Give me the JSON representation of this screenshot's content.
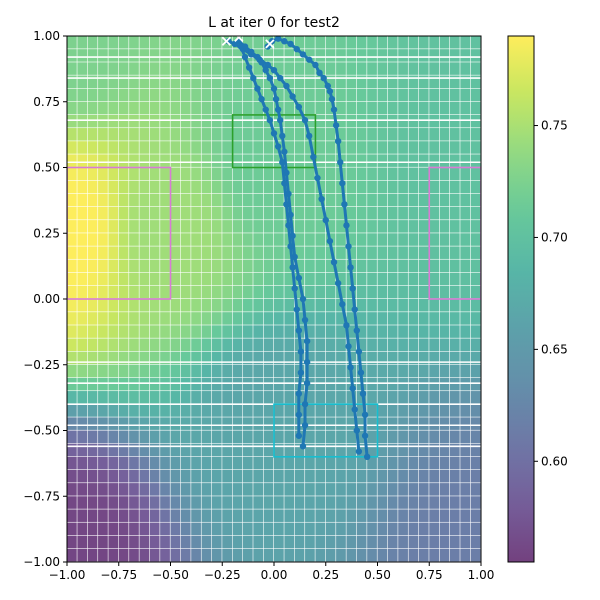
{
  "chart_data": {
    "type": "heatmap",
    "title": "L at iter 0 for test2",
    "xlabel": "",
    "ylabel": "",
    "xlim": [
      -1.0,
      1.0
    ],
    "ylim": [
      -1.0,
      1.0
    ],
    "x_ticks": [
      -1.0,
      -0.75,
      -0.5,
      -0.25,
      0.0,
      0.25,
      0.5,
      0.75,
      1.0
    ],
    "y_ticks": [
      -1.0,
      -0.75,
      -0.5,
      -0.25,
      0.0,
      0.25,
      0.5,
      0.75,
      1.0
    ],
    "x_tick_labels": [
      "−1.00",
      "−0.75",
      "−0.50",
      "−0.25",
      "0.00",
      "0.25",
      "0.50",
      "0.75",
      "1.00"
    ],
    "y_tick_labels": [
      "−1.00",
      "−0.75",
      "−0.50",
      "−0.25",
      "0.00",
      "0.25",
      "0.50",
      "0.75",
      "1.00"
    ],
    "colorbar": {
      "colormap": "viridis",
      "alpha": 0.75,
      "vmin": 0.555,
      "vmax": 0.79,
      "ticks": [
        0.6,
        0.65,
        0.7,
        0.75
      ],
      "tick_labels": [
        "0.60",
        "0.65",
        "0.70",
        "0.75"
      ]
    },
    "heatmap": {
      "grid_size": 40,
      "anchors": [
        {
          "x": -1.0,
          "y": 0.25,
          "value": 0.79
        },
        {
          "x": -1.0,
          "y": 1.0,
          "value": 0.725
        },
        {
          "x": -0.5,
          "y": 0.25,
          "value": 0.745
        },
        {
          "x": 0.0,
          "y": 0.5,
          "value": 0.715
        },
        {
          "x": 1.0,
          "y": 0.5,
          "value": 0.7
        },
        {
          "x": 0.0,
          "y": -0.5,
          "value": 0.665
        },
        {
          "x": -1.0,
          "y": -1.0,
          "value": 0.56
        },
        {
          "x": 1.0,
          "y": -1.0,
          "value": 0.615
        }
      ],
      "white_lines_y": [
        0.92,
        0.84,
        0.68,
        0.52,
        -0.24,
        -0.32,
        -0.4,
        -0.48,
        -0.56
      ]
    },
    "regions": [
      {
        "name": "pink-left",
        "x": [
          -1.0,
          -0.5
        ],
        "y": [
          0.0,
          0.5
        ],
        "color": "#d87bd4"
      },
      {
        "name": "pink-right",
        "x": [
          0.75,
          1.0
        ],
        "y": [
          0.0,
          0.5
        ],
        "color": "#d87bd4"
      },
      {
        "name": "green-goal",
        "x": [
          -0.2,
          0.2
        ],
        "y": [
          0.5,
          0.7
        ],
        "color": "#2ca02c"
      },
      {
        "name": "cyan-start",
        "x": [
          0.0,
          0.5
        ],
        "y": [
          -0.6,
          -0.4
        ],
        "color": "#17becf"
      }
    ],
    "series": [
      {
        "marker": "o",
        "color": "#1f77b4",
        "x": [
          0.45,
          0.44,
          0.44,
          0.43,
          0.42,
          0.41,
          0.4,
          0.39,
          0.38,
          0.37,
          0.36,
          0.35,
          0.34,
          0.33,
          0.32,
          0.31,
          0.3,
          0.29,
          0.28,
          0.27,
          0.26,
          0.24,
          0.22,
          0.2,
          0.17,
          0.14,
          0.11,
          0.08,
          0.05,
          0.02,
          -0.01,
          -0.03
        ],
        "y": [
          -0.6,
          -0.52,
          -0.44,
          -0.36,
          -0.28,
          -0.2,
          -0.12,
          -0.04,
          0.04,
          0.12,
          0.2,
          0.28,
          0.36,
          0.44,
          0.52,
          0.6,
          0.66,
          0.72,
          0.76,
          0.79,
          0.81,
          0.84,
          0.86,
          0.89,
          0.91,
          0.93,
          0.95,
          0.97,
          0.98,
          0.99,
          0.98,
          0.96
        ]
      },
      {
        "marker": "o",
        "color": "#1f77b4",
        "x": [
          0.41,
          0.4,
          0.39,
          0.38,
          0.37,
          0.36,
          0.35,
          0.33,
          0.31,
          0.29,
          0.27,
          0.25,
          0.23,
          0.21,
          0.19,
          0.17,
          0.15,
          0.12,
          0.09,
          0.06,
          0.03,
          0.0,
          -0.03,
          -0.07,
          -0.11,
          -0.15,
          -0.19,
          -0.22
        ],
        "y": [
          -0.58,
          -0.5,
          -0.42,
          -0.34,
          -0.26,
          -0.18,
          -0.1,
          -0.02,
          0.06,
          0.14,
          0.22,
          0.3,
          0.38,
          0.46,
          0.54,
          0.62,
          0.68,
          0.73,
          0.77,
          0.81,
          0.84,
          0.87,
          0.89,
          0.91,
          0.93,
          0.95,
          0.97,
          0.98
        ]
      },
      {
        "marker": "o",
        "color": "#1f77b4",
        "x": [
          0.14,
          0.15,
          0.15,
          0.16,
          0.16,
          0.16,
          0.15,
          0.14,
          0.12,
          0.1,
          0.09,
          0.08,
          0.07,
          0.06,
          0.05,
          0.04,
          0.03,
          0.02,
          0.01,
          0.0,
          -0.02,
          -0.04,
          -0.06,
          -0.08,
          -0.11,
          -0.14,
          -0.17
        ],
        "y": [
          -0.56,
          -0.48,
          -0.4,
          -0.32,
          -0.24,
          -0.16,
          -0.08,
          0.0,
          0.08,
          0.16,
          0.24,
          0.32,
          0.4,
          0.48,
          0.56,
          0.62,
          0.68,
          0.72,
          0.76,
          0.8,
          0.84,
          0.87,
          0.9,
          0.92,
          0.94,
          0.96,
          0.98
        ]
      },
      {
        "marker": "o",
        "color": "#1f77b4",
        "x": [
          0.12,
          0.12,
          0.12,
          0.13,
          0.13,
          0.12,
          0.11,
          0.1,
          0.09,
          0.08,
          0.07,
          0.06,
          0.05,
          0.04,
          0.02,
          0.0,
          -0.02,
          -0.04,
          -0.06,
          -0.08,
          -0.1,
          -0.12,
          -0.14,
          -0.16
        ],
        "y": [
          -0.52,
          -0.44,
          -0.36,
          -0.28,
          -0.2,
          -0.12,
          -0.04,
          0.04,
          0.12,
          0.2,
          0.28,
          0.36,
          0.44,
          0.52,
          0.58,
          0.63,
          0.68,
          0.72,
          0.76,
          0.8,
          0.84,
          0.88,
          0.92,
          0.96
        ]
      }
    ],
    "start_markers": {
      "marker": "x",
      "color": "#ffffff",
      "x": [
        -0.23,
        -0.17,
        -0.02
      ],
      "y": [
        0.98,
        0.995,
        0.97
      ]
    }
  }
}
